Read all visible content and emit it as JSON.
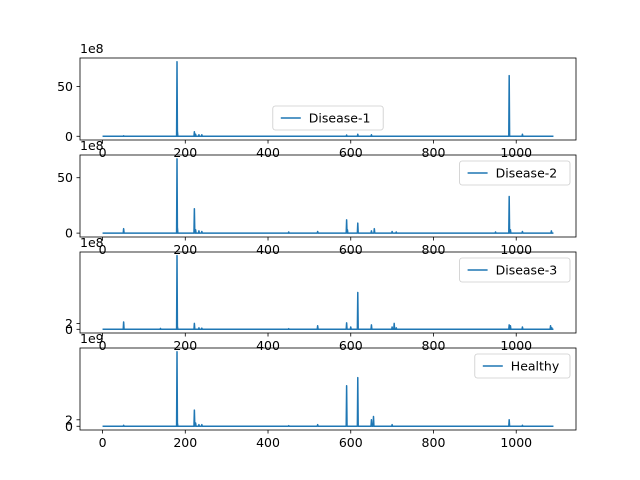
{
  "chart_data": [
    {
      "type": "line",
      "series": [
        {
          "name": "Disease-1",
          "color": "#1f77b4"
        }
      ],
      "xlim": [
        -54.5,
        1144.5
      ],
      "ylim": [
        -3.75,
        78.75
      ],
      "exponent_label": "1e8",
      "yticks": [
        0,
        50
      ],
      "xticks": [
        0,
        200,
        400,
        600,
        800,
        1000
      ],
      "legend_position": "lower-center",
      "x_range": [
        0,
        1090
      ],
      "spikes": [
        [
          51,
          0.5
        ],
        [
          180,
          75
        ],
        [
          181,
          5
        ],
        [
          222,
          4.5
        ],
        [
          225,
          2
        ],
        [
          233,
          1.5
        ],
        [
          240,
          1.5
        ],
        [
          590,
          1.2
        ],
        [
          617,
          2
        ],
        [
          650,
          1.5
        ],
        [
          983,
          61
        ],
        [
          1015,
          2
        ]
      ]
    },
    {
      "type": "line",
      "series": [
        {
          "name": "Disease-2",
          "color": "#1f77b4"
        }
      ],
      "xlim": [
        -54.5,
        1144.5
      ],
      "ylim": [
        -3.5,
        70.5
      ],
      "exponent_label": "1e8",
      "yticks": [
        0,
        50
      ],
      "xticks": [
        0,
        200,
        400,
        600,
        800,
        1000
      ],
      "legend_position": "top-right",
      "x_range": [
        0,
        1090
      ],
      "spikes": [
        [
          51,
          4
        ],
        [
          180,
          67
        ],
        [
          181,
          5
        ],
        [
          222,
          22
        ],
        [
          225,
          3
        ],
        [
          233,
          2
        ],
        [
          240,
          1.5
        ],
        [
          450,
          1
        ],
        [
          520,
          1.5
        ],
        [
          590,
          12
        ],
        [
          592,
          3
        ],
        [
          617,
          9
        ],
        [
          650,
          2
        ],
        [
          657,
          4
        ],
        [
          700,
          1.5
        ],
        [
          710,
          1
        ],
        [
          950,
          1
        ],
        [
          983,
          33
        ],
        [
          986,
          3
        ],
        [
          1015,
          1.5
        ],
        [
          1085,
          2
        ]
      ]
    },
    {
      "type": "line",
      "series": [
        {
          "name": "Disease-3",
          "color": "#1f77b4"
        }
      ],
      "xlim": [
        -54.5,
        1144.5
      ],
      "ylim": [
        -1.25,
        26.25
      ],
      "exponent_label": "1e8",
      "yticks": [
        0,
        2
      ],
      "xticks": [
        0,
        200,
        400,
        600,
        800,
        1000
      ],
      "legend_position": "top-right",
      "x_range": [
        0,
        1090
      ],
      "spikes": [
        [
          51,
          2.5
        ],
        [
          140,
          0.3
        ],
        [
          180,
          25
        ],
        [
          181,
          1
        ],
        [
          222,
          2
        ],
        [
          233,
          0.5
        ],
        [
          240,
          0.4
        ],
        [
          450,
          0.2
        ],
        [
          520,
          1.2
        ],
        [
          590,
          2.2
        ],
        [
          600,
          0.8
        ],
        [
          617,
          12.5
        ],
        [
          650,
          1.5
        ],
        [
          700,
          0.8
        ],
        [
          705,
          2
        ],
        [
          710,
          0.5
        ],
        [
          983,
          1.5
        ],
        [
          986,
          1.2
        ],
        [
          1015,
          0.8
        ],
        [
          1083,
          1.2
        ],
        [
          1086,
          0.5
        ]
      ]
    },
    {
      "type": "line",
      "series": [
        {
          "name": "Healthy",
          "color": "#1f77b4"
        }
      ],
      "xlim": [
        -54.5,
        1144.5
      ],
      "ylim": [
        -1.15,
        24.15
      ],
      "exponent_label": "1e9",
      "yticks": [
        0,
        2
      ],
      "xticks": [
        0,
        200,
        400,
        600,
        800,
        1000
      ],
      "legend_position": "top-right",
      "x_range": [
        0,
        1090
      ],
      "spikes": [
        [
          51,
          0.3
        ],
        [
          180,
          23
        ],
        [
          181,
          1
        ],
        [
          222,
          5
        ],
        [
          225,
          1
        ],
        [
          233,
          0.5
        ],
        [
          240,
          0.5
        ],
        [
          450,
          0.2
        ],
        [
          520,
          0.5
        ],
        [
          590,
          12.5
        ],
        [
          617,
          15
        ],
        [
          650,
          2
        ],
        [
          655,
          3
        ],
        [
          700,
          0.5
        ],
        [
          983,
          2
        ],
        [
          1015,
          0.3
        ]
      ]
    }
  ]
}
